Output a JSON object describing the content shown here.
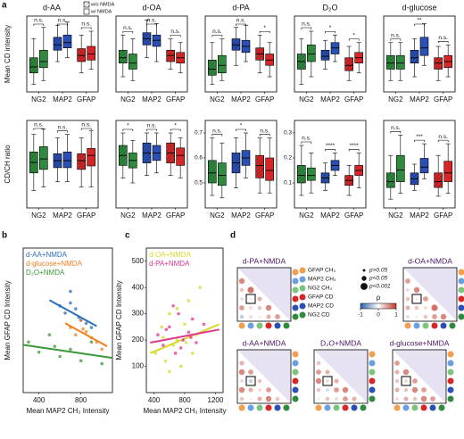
{
  "chart_data": [
    {
      "type": "box",
      "panel": "a",
      "title": "d-AA",
      "y_label": "Mean CD intensity",
      "ylim": [
        0,
        100
      ],
      "categories": [
        "NG2",
        "MAP2",
        "GFAP"
      ],
      "category_colors": [
        "#2e8b3e",
        "#2a4fb5",
        "#d62728"
      ],
      "significance": [
        "n.s.",
        "n.s.",
        "n.s."
      ],
      "series": [
        {
          "name": "w/o NMDA",
          "hatch": true,
          "min": [
            10,
            40,
            25
          ],
          "q1": [
            25,
            55,
            40
          ],
          "median": [
            33,
            62,
            48
          ],
          "q3": [
            45,
            72,
            57
          ],
          "max": [
            70,
            88,
            75
          ]
        },
        {
          "name": "w/ NMDA",
          "hatch": false,
          "min": [
            15,
            45,
            30
          ],
          "q1": [
            32,
            58,
            42
          ],
          "median": [
            40,
            65,
            50
          ],
          "q3": [
            55,
            75,
            60
          ],
          "max": [
            85,
            92,
            80
          ]
        }
      ]
    },
    {
      "type": "box",
      "title": "d-OA",
      "ylim": [
        0,
        100
      ],
      "categories": [
        "NG2",
        "MAP2",
        "GFAP"
      ],
      "category_colors": [
        "#2e8b3e",
        "#2a4fb5",
        "#d62728"
      ],
      "significance": [
        "n.s.",
        "n.s.",
        "n.s."
      ],
      "series": [
        {
          "hatch": true,
          "min": [
            20,
            45,
            30
          ],
          "q1": [
            38,
            62,
            40
          ],
          "median": [
            45,
            70,
            48
          ],
          "q3": [
            55,
            78,
            55
          ],
          "max": [
            75,
            95,
            70
          ]
        },
        {
          "hatch": false,
          "min": [
            15,
            40,
            25
          ],
          "q1": [
            30,
            60,
            38
          ],
          "median": [
            38,
            68,
            45
          ],
          "q3": [
            50,
            75,
            52
          ],
          "max": [
            70,
            90,
            65
          ]
        }
      ]
    },
    {
      "type": "box",
      "title": "d-PA",
      "ylim": [
        0,
        100
      ],
      "categories": [
        "NG2",
        "MAP2",
        "GFAP"
      ],
      "category_colors": [
        "#2e8b3e",
        "#2a4fb5",
        "#d62728"
      ],
      "significance": [
        "n.s.",
        "n.s.",
        "*"
      ],
      "series": [
        {
          "hatch": true,
          "min": [
            10,
            35,
            25
          ],
          "q1": [
            22,
            55,
            42
          ],
          "median": [
            30,
            62,
            50
          ],
          "q3": [
            42,
            70,
            58
          ],
          "max": [
            65,
            85,
            75
          ]
        },
        {
          "hatch": false,
          "min": [
            15,
            40,
            20
          ],
          "q1": [
            25,
            52,
            35
          ],
          "median": [
            35,
            60,
            42
          ],
          "q3": [
            48,
            68,
            50
          ],
          "max": [
            70,
            88,
            65
          ]
        }
      ]
    },
    {
      "type": "box",
      "title": "D₂O",
      "ylim": [
        0,
        100
      ],
      "categories": [
        "NG2",
        "MAP2",
        "GFAP"
      ],
      "category_colors": [
        "#2e8b3e",
        "#2a4fb5",
        "#d62728"
      ],
      "significance": [
        "n.s.",
        "*",
        "*"
      ],
      "series": [
        {
          "hatch": true,
          "min": [
            10,
            30,
            15
          ],
          "q1": [
            30,
            42,
            28
          ],
          "median": [
            40,
            47,
            35
          ],
          "q3": [
            50,
            55,
            45
          ],
          "max": [
            70,
            68,
            60
          ]
        },
        {
          "hatch": false,
          "min": [
            20,
            40,
            25
          ],
          "q1": [
            40,
            50,
            38
          ],
          "median": [
            50,
            58,
            45
          ],
          "q3": [
            62,
            65,
            52
          ],
          "max": [
            80,
            75,
            65
          ]
        }
      ]
    },
    {
      "type": "box",
      "title": "d-glucose",
      "ylim": [
        0,
        100
      ],
      "categories": [
        "NG2",
        "MAP2",
        "GFAP"
      ],
      "category_colors": [
        "#2e8b3e",
        "#2a4fb5",
        "#d62728"
      ],
      "significance": [
        "n.s.",
        "**",
        "n.s."
      ],
      "series": [
        {
          "hatch": true,
          "min": [
            15,
            20,
            15
          ],
          "q1": [
            30,
            38,
            30
          ],
          "median": [
            38,
            45,
            38
          ],
          "q3": [
            48,
            55,
            45
          ],
          "max": [
            65,
            70,
            60
          ]
        },
        {
          "hatch": false,
          "min": [
            15,
            35,
            20
          ],
          "q1": [
            30,
            48,
            32
          ],
          "median": [
            38,
            58,
            40
          ],
          "q3": [
            48,
            72,
            48
          ],
          "max": [
            65,
            90,
            62
          ]
        }
      ]
    },
    {
      "type": "box",
      "y_label": "CD/CH ratio",
      "ylim": [
        0,
        0.5
      ],
      "categories": [
        "NG2",
        "MAP2",
        "GFAP"
      ],
      "category_colors": [
        "#2e8b3e",
        "#2a4fb5",
        "#d62728"
      ],
      "significance": [
        "n.s.",
        "n.s.",
        "n.s."
      ],
      "series": [
        {
          "hatch": true,
          "min": [
            0.1,
            0.15,
            0.12
          ],
          "q1": [
            0.2,
            0.23,
            0.22
          ],
          "median": [
            0.26,
            0.27,
            0.27
          ],
          "q3": [
            0.32,
            0.31,
            0.31
          ],
          "max": [
            0.42,
            0.4,
            0.4
          ]
        },
        {
          "hatch": false,
          "min": [
            0.12,
            0.15,
            0.12
          ],
          "q1": [
            0.22,
            0.23,
            0.24
          ],
          "median": [
            0.28,
            0.27,
            0.3
          ],
          "q3": [
            0.35,
            0.32,
            0.34
          ],
          "max": [
            0.45,
            0.42,
            0.44
          ]
        }
      ]
    },
    {
      "type": "box",
      "ylim": [
        0,
        0.35
      ],
      "categories": [
        "NG2",
        "MAP2",
        "GFAP"
      ],
      "category_colors": [
        "#2e8b3e",
        "#2a4fb5",
        "#d62728"
      ],
      "significance": [
        "*",
        "n.s.",
        "*"
      ],
      "series": [
        {
          "hatch": true,
          "min": [
            0.12,
            0.13,
            0.13
          ],
          "q1": [
            0.17,
            0.18,
            0.18
          ],
          "median": [
            0.21,
            0.22,
            0.22
          ],
          "q3": [
            0.25,
            0.26,
            0.26
          ],
          "max": [
            0.3,
            0.3,
            0.3
          ]
        },
        {
          "hatch": false,
          "min": [
            0.1,
            0.14,
            0.12
          ],
          "q1": [
            0.16,
            0.19,
            0.17
          ],
          "median": [
            0.19,
            0.22,
            0.21
          ],
          "q3": [
            0.22,
            0.25,
            0.24
          ],
          "max": [
            0.27,
            0.3,
            0.28
          ]
        }
      ]
    },
    {
      "type": "box",
      "ylim": [
        0.4,
        0.75
      ],
      "yticks": [
        0.5,
        0.6,
        0.7
      ],
      "categories": [
        "NG2",
        "MAP2",
        "GFAP"
      ],
      "category_colors": [
        "#2e8b3e",
        "#2a4fb5",
        "#d62728"
      ],
      "significance": [
        "n.s.",
        "*",
        "n.s."
      ],
      "series": [
        {
          "hatch": true,
          "min": [
            0.45,
            0.48,
            0.46
          ],
          "q1": [
            0.5,
            0.54,
            0.52
          ],
          "median": [
            0.54,
            0.58,
            0.57
          ],
          "q3": [
            0.59,
            0.62,
            0.61
          ],
          "max": [
            0.68,
            0.68,
            0.68
          ]
        },
        {
          "hatch": false,
          "min": [
            0.44,
            0.52,
            0.46
          ],
          "q1": [
            0.49,
            0.57,
            0.51
          ],
          "median": [
            0.53,
            0.6,
            0.55
          ],
          "q3": [
            0.58,
            0.63,
            0.6
          ],
          "max": [
            0.66,
            0.7,
            0.68
          ]
        }
      ]
    },
    {
      "type": "box",
      "ylim": [
        0,
        0.35
      ],
      "yticks": [
        0.1,
        0.2,
        0.3
      ],
      "categories": [
        "NG2",
        "MAP2",
        "GFAP"
      ],
      "category_colors": [
        "#2e8b3e",
        "#2a4fb5",
        "#d62728"
      ],
      "significance": [
        "n.s.",
        "****",
        "****"
      ],
      "series": [
        {
          "hatch": true,
          "min": [
            0.05,
            0.07,
            0.05
          ],
          "q1": [
            0.1,
            0.1,
            0.09
          ],
          "median": [
            0.13,
            0.12,
            0.11
          ],
          "q3": [
            0.17,
            0.14,
            0.13
          ],
          "max": [
            0.25,
            0.18,
            0.17
          ]
        },
        {
          "hatch": false,
          "min": [
            0.06,
            0.13,
            0.08
          ],
          "q1": [
            0.11,
            0.15,
            0.13
          ],
          "median": [
            0.13,
            0.17,
            0.15
          ],
          "q3": [
            0.16,
            0.19,
            0.17
          ],
          "max": [
            0.22,
            0.22,
            0.22
          ]
        }
      ]
    },
    {
      "type": "box",
      "ylim": [
        0,
        0.3
      ],
      "categories": [
        "NG2",
        "MAP2",
        "GFAP"
      ],
      "category_colors": [
        "#2e8b3e",
        "#2a4fb5",
        "#d62728"
      ],
      "significance": [
        "n.s.",
        "***",
        "n.s."
      ],
      "series": [
        {
          "hatch": true,
          "min": [
            0.03,
            0.06,
            0.04
          ],
          "q1": [
            0.07,
            0.08,
            0.07
          ],
          "median": [
            0.09,
            0.1,
            0.09
          ],
          "q3": [
            0.12,
            0.12,
            0.12
          ],
          "max": [
            0.18,
            0.15,
            0.18
          ]
        },
        {
          "hatch": false,
          "min": [
            0.05,
            0.1,
            0.05
          ],
          "q1": [
            0.09,
            0.12,
            0.09
          ],
          "median": [
            0.13,
            0.14,
            0.12
          ],
          "q3": [
            0.18,
            0.17,
            0.16
          ],
          "max": [
            0.25,
            0.22,
            0.22
          ]
        }
      ]
    },
    {
      "type": "scatter",
      "panel": "b",
      "x_label": "Mean MAP2 CH₃ Intensity",
      "y_label": "Mean GFAP CD Intensity",
      "xlim": [
        250,
        1100
      ],
      "xticks": [
        400,
        800
      ],
      "ylim": [
        0,
        100
      ],
      "series": [
        {
          "name": "d-AA+NMDA",
          "color": "#2a6fbf",
          "x": [
            600,
            650,
            700,
            750,
            800,
            850,
            900,
            700,
            780
          ],
          "y": [
            60,
            55,
            70,
            58,
            50,
            48,
            45,
            62,
            52
          ],
          "fit_x": [
            500,
            950
          ],
          "fit_y": [
            64,
            46
          ]
        },
        {
          "name": "d-glucose+NMDA",
          "color": "#f07f1e",
          "x": [
            700,
            750,
            800,
            850,
            900,
            950,
            1000,
            820
          ],
          "y": [
            45,
            40,
            50,
            42,
            38,
            35,
            30,
            44
          ],
          "fit_x": [
            650,
            1050
          ],
          "fit_y": [
            48,
            32
          ]
        },
        {
          "name": "D₂O+NMDA",
          "color": "#3a9a3a",
          "x": [
            300,
            400,
            500,
            600,
            700,
            800,
            900,
            1000,
            550
          ],
          "y": [
            35,
            28,
            40,
            25,
            30,
            22,
            35,
            20,
            32
          ],
          "fit_x": [
            250,
            1100
          ],
          "fit_y": [
            33,
            24
          ]
        }
      ]
    },
    {
      "type": "scatter",
      "panel": "c",
      "x_label": "Mean MAP2 CH₃ Intensity",
      "y_label": "Mean GFAP CD Intensity",
      "xlim": [
        300,
        1300
      ],
      "xticks": [
        400,
        800,
        1200
      ],
      "ylim": [
        0,
        550
      ],
      "yticks": [
        100,
        200,
        300,
        400,
        500
      ],
      "series": [
        {
          "name": "d-OA+NMDA",
          "color": "#d8d82a",
          "x": [
            420,
            500,
            550,
            600,
            650,
            700,
            750,
            800,
            850,
            900,
            950,
            1000,
            600,
            700,
            820,
            520
          ],
          "y": [
            150,
            250,
            120,
            300,
            180,
            200,
            100,
            260,
            350,
            150,
            220,
            400,
            80,
            320,
            190,
            210
          ],
          "fit_x": [
            350,
            1250
          ],
          "fit_y": [
            150,
            260
          ]
        },
        {
          "name": "d-PA+NMDA",
          "color": "#e0358f",
          "x": [
            450,
            520,
            600,
            680,
            720,
            780,
            850,
            900,
            950,
            1050,
            650,
            750,
            880,
            560
          ],
          "y": [
            220,
            180,
            250,
            150,
            300,
            200,
            230,
            280,
            190,
            260,
            330,
            170,
            210,
            240
          ],
          "fit_x": [
            350,
            1250
          ],
          "fit_y": [
            190,
            240
          ]
        }
      ]
    },
    {
      "type": "correlation",
      "panel": "d",
      "title": "d-PA+NMDA",
      "variables": [
        "GFAP CH₃",
        "MAP2 CH₃",
        "NG2 CH₃",
        "GFAP CD",
        "MAP2 CD",
        "NG2 CD"
      ],
      "variable_colors": [
        "#f0a050",
        "#6aa0e0",
        "#7cc47c",
        "#d62728",
        "#2a4fb5",
        "#2e8b3e"
      ],
      "p_legend": [
        "p>0.05",
        "p<0.05",
        "p<0.001"
      ],
      "cbar_label": "ρ",
      "cbar_lim": [
        -1,
        1
      ],
      "cbar_ticks": [
        -1,
        0,
        1
      ],
      "rho": [
        0.6,
        0.3,
        0.7,
        -0.2,
        0.1,
        0.4,
        0.5,
        0.2,
        0.3,
        0.6,
        -0.3,
        0.2,
        0.1,
        0.4,
        0.5
      ]
    },
    {
      "type": "correlation",
      "title": "d-OA+NMDA",
      "rho": [
        0.5,
        0.2,
        0.6,
        0.3,
        0.1,
        0.5,
        0.4,
        0.3,
        0.2,
        0.7,
        -0.2,
        0.1,
        0.3,
        0.5,
        0.6
      ]
    },
    {
      "type": "correlation",
      "title": "d-AA+NMDA",
      "rho": [
        0.4,
        0.6,
        0.5,
        0.2,
        -0.3,
        0.3,
        0.6,
        0.4,
        0.2,
        0.5,
        0.3,
        0.1,
        0.4,
        0.6,
        0.3
      ]
    },
    {
      "type": "correlation",
      "title": "D₂O+NMDA",
      "rho": [
        0.3,
        0.5,
        0.4,
        0.6,
        0.2,
        0.4,
        0.3,
        -0.2,
        0.5,
        0.6,
        0.1,
        0.3,
        0.2,
        0.5,
        0.4
      ]
    },
    {
      "type": "correlation",
      "title": "d-glucose+NMDA",
      "rho": [
        0.5,
        0.4,
        0.6,
        0.3,
        0.2,
        0.5,
        0.4,
        0.3,
        0.6,
        0.5,
        0.2,
        0.4,
        0.3,
        0.6,
        0.5
      ]
    }
  ]
}
